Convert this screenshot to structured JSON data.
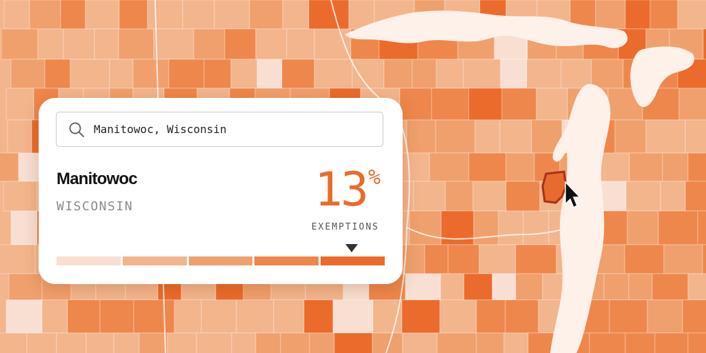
{
  "search": {
    "value": "Manitowoc, Wisconsin",
    "icon": "search-icon"
  },
  "result": {
    "county": "Manitowoc",
    "state": "WISCONSIN",
    "value": "13",
    "unit": "%",
    "label": "EXEMPTIONS",
    "value_fraction": 0.13
  },
  "legend": {
    "colors": [
      "#f8dfd2",
      "#f3b58c",
      "#f0a06c",
      "#ee874b",
      "#ea6b2b"
    ],
    "selected_bin": 4
  },
  "map": {
    "water_color": "#fdf1ea",
    "highlighted_county": "Manitowoc",
    "highlight_fill": "#e86a2e",
    "highlight_outline": "#a63217",
    "cursor_icon": "mouse-pointer-icon"
  }
}
